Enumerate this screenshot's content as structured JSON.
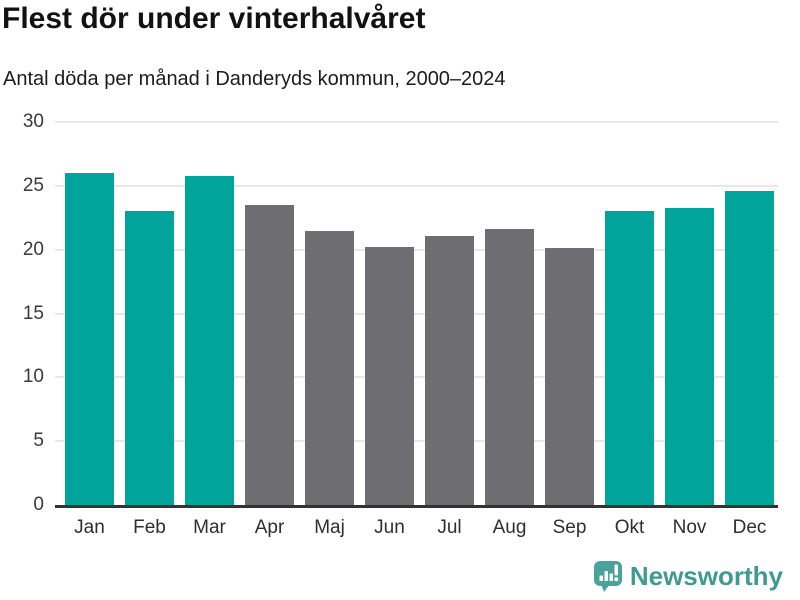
{
  "header": {
    "title": "Flest dör under vinterhalvåret",
    "subtitle": "Antal döda per månad i Danderyds kommun, 2000–2024"
  },
  "footer": {
    "logo_text": "Newsworthy",
    "logo_icon": "newsworthy-speech-bubble-bar-chart-icon"
  },
  "colors": {
    "winter_bar": "#00a49b",
    "summer_bar": "#6e6d72",
    "axis_line": "#333333",
    "gridline": "#e8e8e8",
    "y_tick_label": "#3a3a3a",
    "x_tick_label": "#2e2e2e",
    "title_text": "#121212",
    "logo_text_teal": "#3f9a92",
    "logo_icon_teal": "#4aa29a"
  },
  "chart_data": {
    "type": "bar",
    "title": "Flest dör under vinterhalvåret",
    "subtitle": "Antal döda per månad i Danderyds kommun, 2000–2024",
    "categories": [
      "Jan",
      "Feb",
      "Mar",
      "Apr",
      "Maj",
      "Jun",
      "Jul",
      "Aug",
      "Sep",
      "Okt",
      "Nov",
      "Dec"
    ],
    "values": [
      26.0,
      23.0,
      25.8,
      23.5,
      21.5,
      20.2,
      21.1,
      21.6,
      20.1,
      23.0,
      23.3,
      24.6
    ],
    "bar_group": [
      "winter",
      "winter",
      "winter",
      "summer",
      "summer",
      "summer",
      "summer",
      "summer",
      "summer",
      "winter",
      "winter",
      "winter"
    ],
    "group_colors": {
      "winter": "#00a49b",
      "summer": "#6e6d72"
    },
    "xlabel": "",
    "ylabel": "",
    "ylim": [
      0,
      30
    ],
    "yticks": [
      0,
      5,
      10,
      15,
      20,
      25,
      30
    ],
    "grid": true,
    "legend_position": "none"
  }
}
